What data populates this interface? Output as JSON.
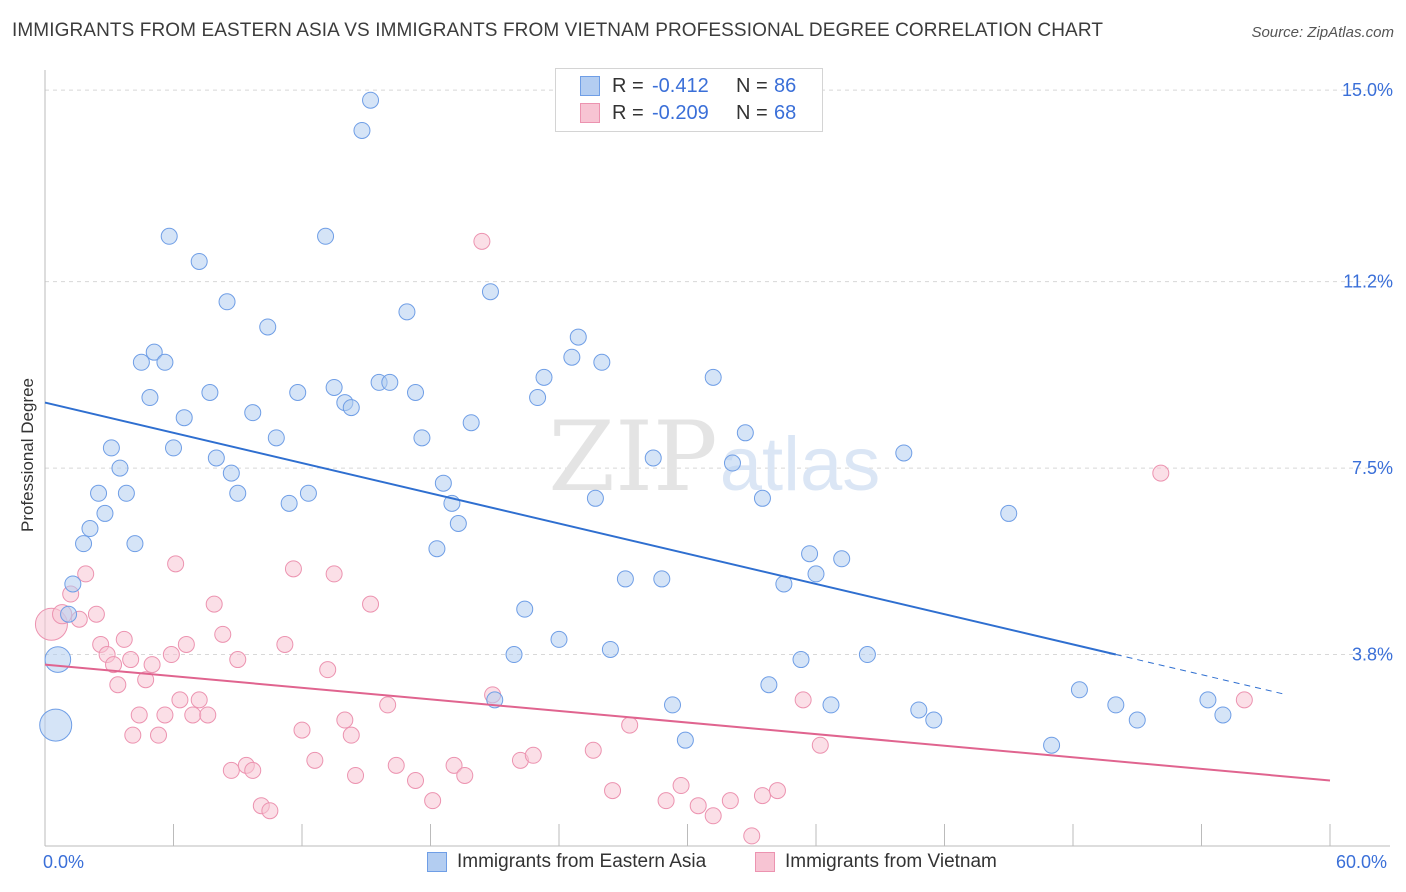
{
  "header": {
    "title": "IMMIGRANTS FROM EASTERN ASIA VS IMMIGRANTS FROM VIETNAM PROFESSIONAL DEGREE CORRELATION CHART",
    "source": "Source: ZipAtlas.com"
  },
  "watermark": {
    "zip": "ZIP",
    "atlas": "atlas"
  },
  "legend": {
    "rows": [
      {
        "r_label": "R =",
        "r_value": "-0.412",
        "n_label": "N =",
        "n_value": "86",
        "color": "#a8c6f0",
        "border": "#6f9ee6"
      },
      {
        "r_label": "R =",
        "r_value": "-0.209",
        "n_label": "N =",
        "n_value": "68",
        "color": "#f7bfd0",
        "border": "#ee8fae"
      }
    ]
  },
  "colors": {
    "blue_fill": "#b3cdf1",
    "blue_stroke": "#6f9ee6",
    "blue_line": "#2f6fd0",
    "pink_fill": "#f7c4d3",
    "pink_stroke": "#ec93b0",
    "pink_line": "#e0648f",
    "tick_label": "#3a6fd8",
    "grid": "#d8d8d8"
  },
  "chart_data": {
    "type": "scatter",
    "title": "IMMIGRANTS FROM EASTERN ASIA VS IMMIGRANTS FROM VIETNAM PROFESSIONAL DEGREE CORRELATION CHART",
    "xlabel": "",
    "ylabel": "Professional Degree",
    "xlim": [
      0,
      60
    ],
    "ylim": [
      0,
      15.4
    ],
    "x_tick_labels": [
      "0.0%",
      "60.0%"
    ],
    "y_ticks": [
      3.8,
      7.5,
      11.2,
      15.0
    ],
    "y_tick_labels": [
      "3.8%",
      "7.5%",
      "11.2%",
      "15.0%"
    ],
    "grid": true,
    "legend_placement": "top-center",
    "series": [
      {
        "name": "Immigrants from Eastern Asia",
        "r": -0.412,
        "n": 86,
        "trend": {
          "x0": 0,
          "y0": 8.8,
          "x1": 50,
          "y1": 3.8,
          "dashed_to": 58
        },
        "points": [
          [
            0.5,
            2.4,
            2
          ],
          [
            0.6,
            3.7,
            1.6
          ],
          [
            1.1,
            4.6,
            1
          ],
          [
            1.3,
            5.2,
            1
          ],
          [
            1.8,
            6.0,
            1
          ],
          [
            2.1,
            6.3,
            1
          ],
          [
            2.5,
            7.0,
            1
          ],
          [
            2.8,
            6.6,
            1
          ],
          [
            3.1,
            7.9,
            1
          ],
          [
            3.5,
            7.5,
            1
          ],
          [
            3.8,
            7.0,
            1
          ],
          [
            4.2,
            6.0,
            1
          ],
          [
            4.5,
            9.6,
            1
          ],
          [
            4.9,
            8.9,
            1
          ],
          [
            5.1,
            9.8,
            1
          ],
          [
            5.6,
            9.6,
            1
          ],
          [
            5.8,
            12.1,
            1
          ],
          [
            6.0,
            7.9,
            1
          ],
          [
            6.5,
            8.5,
            1
          ],
          [
            7.2,
            11.6,
            1
          ],
          [
            7.7,
            9.0,
            1
          ],
          [
            8.0,
            7.7,
            1
          ],
          [
            8.5,
            10.8,
            1
          ],
          [
            8.7,
            7.4,
            1
          ],
          [
            9.0,
            7.0,
            1
          ],
          [
            9.7,
            8.6,
            1
          ],
          [
            10.4,
            10.3,
            1
          ],
          [
            10.8,
            8.1,
            1
          ],
          [
            11.4,
            6.8,
            1
          ],
          [
            11.8,
            9.0,
            1
          ],
          [
            12.3,
            7.0,
            1
          ],
          [
            13.1,
            12.1,
            1
          ],
          [
            13.5,
            9.1,
            1
          ],
          [
            14.0,
            8.8,
            1
          ],
          [
            14.3,
            8.7,
            1
          ],
          [
            14.8,
            14.2,
            1
          ],
          [
            15.2,
            14.8,
            1
          ],
          [
            15.6,
            9.2,
            1
          ],
          [
            16.1,
            9.2,
            1
          ],
          [
            16.9,
            10.6,
            1
          ],
          [
            17.3,
            9.0,
            1
          ],
          [
            17.6,
            8.1,
            1
          ],
          [
            18.3,
            5.9,
            1
          ],
          [
            18.6,
            7.2,
            1
          ],
          [
            19.0,
            6.8,
            1
          ],
          [
            19.3,
            6.4,
            1
          ],
          [
            19.9,
            8.4,
            1
          ],
          [
            20.8,
            11.0,
            1
          ],
          [
            21.0,
            2.9,
            1
          ],
          [
            21.9,
            3.8,
            1
          ],
          [
            22.4,
            4.7,
            1
          ],
          [
            23.0,
            8.9,
            1
          ],
          [
            23.3,
            9.3,
            1
          ],
          [
            24.0,
            4.1,
            1
          ],
          [
            24.6,
            9.7,
            1
          ],
          [
            24.9,
            10.1,
            1
          ],
          [
            25.7,
            6.9,
            1
          ],
          [
            26.0,
            9.6,
            1
          ],
          [
            26.4,
            3.9,
            1
          ],
          [
            27.1,
            5.3,
            1
          ],
          [
            28.4,
            7.7,
            1
          ],
          [
            28.8,
            5.3,
            1
          ],
          [
            29.3,
            2.8,
            1
          ],
          [
            29.9,
            2.1,
            1
          ],
          [
            31.2,
            9.3,
            1
          ],
          [
            32.1,
            7.6,
            1
          ],
          [
            32.7,
            8.2,
            1
          ],
          [
            33.5,
            6.9,
            1
          ],
          [
            33.8,
            3.2,
            1
          ],
          [
            34.5,
            5.2,
            1
          ],
          [
            35.3,
            3.7,
            1
          ],
          [
            35.7,
            5.8,
            1
          ],
          [
            36.0,
            5.4,
            1
          ],
          [
            36.7,
            2.8,
            1
          ],
          [
            37.2,
            5.7,
            1
          ],
          [
            38.4,
            3.8,
            1
          ],
          [
            40.1,
            7.8,
            1
          ],
          [
            40.8,
            2.7,
            1
          ],
          [
            41.5,
            2.5,
            1
          ],
          [
            45.0,
            6.6,
            1
          ],
          [
            47.0,
            2.0,
            1
          ],
          [
            48.3,
            3.1,
            1
          ],
          [
            50.0,
            2.8,
            1
          ],
          [
            51.0,
            2.5,
            1
          ],
          [
            54.3,
            2.9,
            1
          ],
          [
            55.0,
            2.6,
            1
          ]
        ]
      },
      {
        "name": "Immigrants from Vietnam",
        "r": -0.209,
        "n": 68,
        "trend": {
          "x0": 0,
          "y0": 3.6,
          "x1": 60,
          "y1": 1.3
        },
        "points": [
          [
            0.3,
            4.4,
            2
          ],
          [
            0.8,
            4.6,
            1.2
          ],
          [
            1.2,
            5.0,
            1
          ],
          [
            1.6,
            4.5,
            1
          ],
          [
            1.9,
            5.4,
            1
          ],
          [
            2.4,
            4.6,
            1
          ],
          [
            2.6,
            4.0,
            1
          ],
          [
            2.9,
            3.8,
            1
          ],
          [
            3.2,
            3.6,
            1
          ],
          [
            3.4,
            3.2,
            1
          ],
          [
            3.7,
            4.1,
            1
          ],
          [
            4.0,
            3.7,
            1
          ],
          [
            4.1,
            2.2,
            1
          ],
          [
            4.4,
            2.6,
            1
          ],
          [
            4.7,
            3.3,
            1
          ],
          [
            5.0,
            3.6,
            1
          ],
          [
            5.3,
            2.2,
            1
          ],
          [
            5.6,
            2.6,
            1
          ],
          [
            5.9,
            3.8,
            1
          ],
          [
            6.1,
            5.6,
            1
          ],
          [
            6.3,
            2.9,
            1
          ],
          [
            6.6,
            4.0,
            1
          ],
          [
            6.9,
            2.6,
            1
          ],
          [
            7.2,
            2.9,
            1
          ],
          [
            7.6,
            2.6,
            1
          ],
          [
            7.9,
            4.8,
            1
          ],
          [
            8.3,
            4.2,
            1
          ],
          [
            8.7,
            1.5,
            1
          ],
          [
            9.0,
            3.7,
            1
          ],
          [
            9.4,
            1.6,
            1
          ],
          [
            9.7,
            1.5,
            1
          ],
          [
            10.1,
            0.8,
            1
          ],
          [
            10.5,
            0.7,
            1
          ],
          [
            11.2,
            4.0,
            1
          ],
          [
            11.6,
            5.5,
            1
          ],
          [
            12.0,
            2.3,
            1
          ],
          [
            12.6,
            1.7,
            1
          ],
          [
            13.2,
            3.5,
            1
          ],
          [
            13.5,
            5.4,
            1
          ],
          [
            14.0,
            2.5,
            1
          ],
          [
            14.3,
            2.2,
            1
          ],
          [
            14.5,
            1.4,
            1
          ],
          [
            15.2,
            4.8,
            1
          ],
          [
            16.0,
            2.8,
            1
          ],
          [
            16.4,
            1.6,
            1
          ],
          [
            17.3,
            1.3,
            1
          ],
          [
            18.1,
            0.9,
            1
          ],
          [
            19.1,
            1.6,
            1
          ],
          [
            19.6,
            1.4,
            1
          ],
          [
            20.4,
            12.0,
            1
          ],
          [
            20.9,
            3.0,
            1
          ],
          [
            22.2,
            1.7,
            1
          ],
          [
            22.8,
            1.8,
            1
          ],
          [
            25.6,
            1.9,
            1
          ],
          [
            26.5,
            1.1,
            1
          ],
          [
            27.3,
            2.4,
            1
          ],
          [
            29.0,
            0.9,
            1
          ],
          [
            29.7,
            1.2,
            1
          ],
          [
            30.5,
            0.8,
            1
          ],
          [
            31.2,
            0.6,
            1
          ],
          [
            32.0,
            0.9,
            1
          ],
          [
            33.0,
            0.2,
            1
          ],
          [
            33.5,
            1.0,
            1
          ],
          [
            34.2,
            1.1,
            1
          ],
          [
            35.4,
            2.9,
            1
          ],
          [
            36.2,
            2.0,
            1
          ],
          [
            52.1,
            7.4,
            1
          ],
          [
            56.0,
            2.9,
            1
          ]
        ]
      }
    ]
  },
  "axis": {
    "x_left": "0.0%",
    "x_right": "60.0%"
  },
  "bottom_legend": [
    {
      "label": "Immigrants from Eastern Asia"
    },
    {
      "label": "Immigrants from Vietnam"
    }
  ]
}
